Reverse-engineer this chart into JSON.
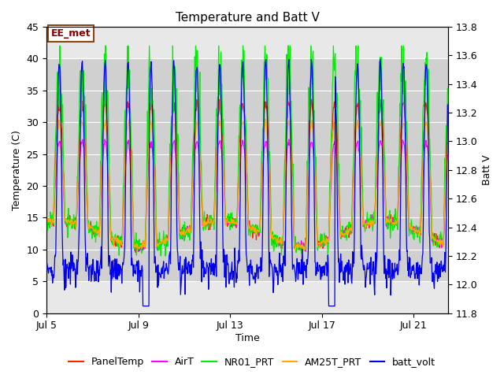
{
  "title": "Temperature and Batt V",
  "xlabel": "Time",
  "ylabel_left": "Temperature (C)",
  "ylabel_right": "Batt V",
  "ylim_left": [
    0,
    45
  ],
  "ylim_right": [
    11.8,
    13.8
  ],
  "xlim": [
    0,
    17.5
  ],
  "xtick_positions": [
    0,
    4,
    8,
    12,
    16
  ],
  "xtick_labels": [
    "Jul 5",
    "Jul 9",
    "Jul 13",
    "Jul 17",
    "Jul 21"
  ],
  "shade_ymin": 5,
  "shade_ymax": 40,
  "annotation_text": "EE_met",
  "legend_labels": [
    "PanelTemp",
    "AirT",
    "NR01_PRT",
    "AM25T_PRT",
    "batt_volt"
  ],
  "line_colors": [
    "#ff2200",
    "#ff00ff",
    "#00ee00",
    "#ffaa00",
    "#0000ee"
  ],
  "background_color": "#ffffff",
  "plot_bg_color": "#e8e8e8",
  "shade_color": "#d0d0d0",
  "grid_color": "#ffffff",
  "title_fontsize": 11,
  "axis_fontsize": 9,
  "legend_fontsize": 9,
  "n_days": 17.5,
  "temp_night_base": 12.5,
  "temp_night_var": 2.0,
  "panel_day_max": 33,
  "air_day_max": 27,
  "nr01_day_max": 39,
  "am25_day_max": 30,
  "batt_day_max": 13.55,
  "batt_night_base": 12.1,
  "batt_scale_low": 12.0,
  "batt_spike_low_temp": 2.0
}
